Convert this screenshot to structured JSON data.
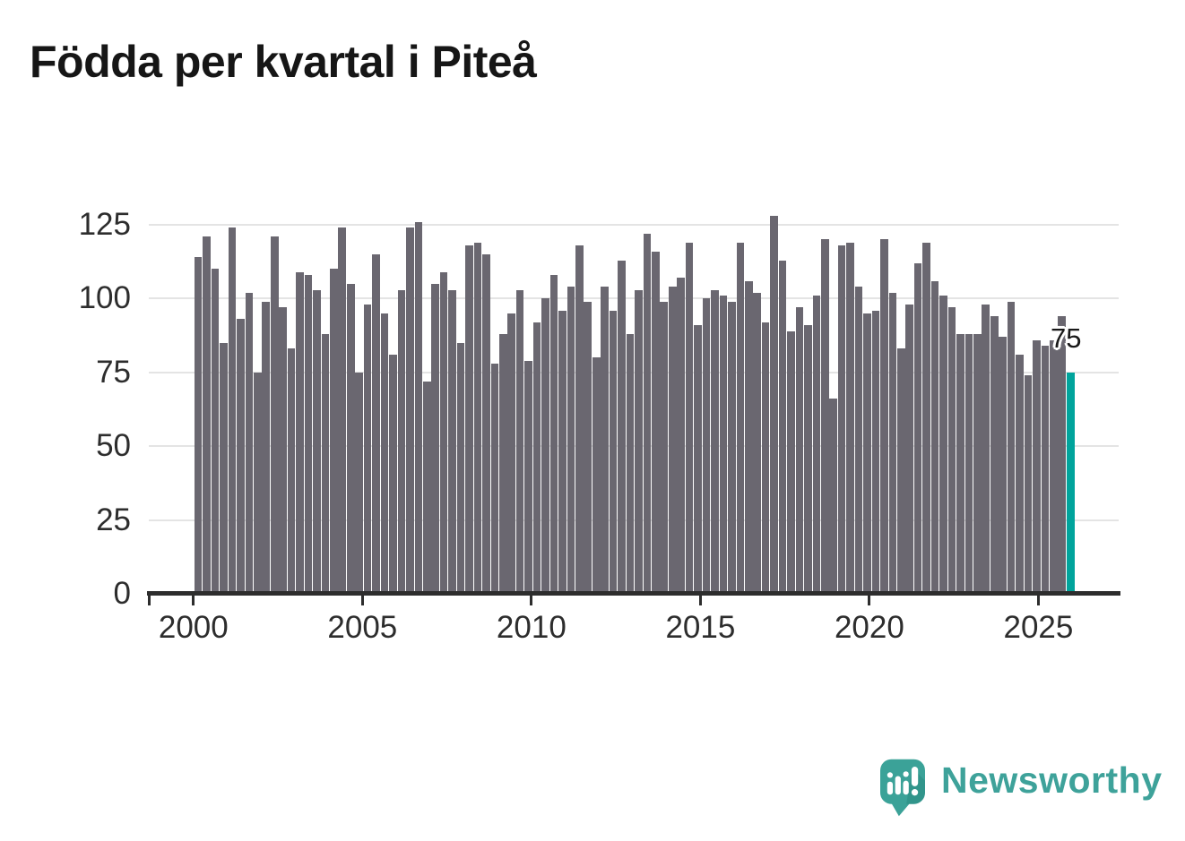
{
  "title": "Födda per kvartal i Piteå",
  "value_label": "75",
  "brand": {
    "name": "Newsworthy"
  },
  "colors": {
    "bar": "#6a6770",
    "highlight": "#00a49c",
    "gridline": "#e4e4e4",
    "axis": "#2d2d2d",
    "title_text": "#161616",
    "tick_text": "#2d2d2d",
    "annotation_text": "#191919",
    "brand_teal": "#3ea29a"
  },
  "chart_data": {
    "type": "bar",
    "title": "Födda per kvartal i Piteå",
    "xlabel": "",
    "ylabel": "",
    "ylim": [
      0,
      135
    ],
    "grid": "horizontal",
    "legend": "none",
    "y_ticks": [
      0,
      25,
      50,
      75,
      100,
      125
    ],
    "x_tick_labels": [
      "2000",
      "2005",
      "2010",
      "2015",
      "2020",
      "2025"
    ],
    "categories": [
      "2000 Q1",
      "2000 Q2",
      "2000 Q3",
      "2000 Q4",
      "2001 Q1",
      "2001 Q2",
      "2001 Q3",
      "2001 Q4",
      "2002 Q1",
      "2002 Q2",
      "2002 Q3",
      "2002 Q4",
      "2003 Q1",
      "2003 Q2",
      "2003 Q3",
      "2003 Q4",
      "2004 Q1",
      "2004 Q2",
      "2004 Q3",
      "2004 Q4",
      "2005 Q1",
      "2005 Q2",
      "2005 Q3",
      "2005 Q4",
      "2006 Q1",
      "2006 Q2",
      "2006 Q3",
      "2006 Q4",
      "2007 Q1",
      "2007 Q2",
      "2007 Q3",
      "2007 Q4",
      "2008 Q1",
      "2008 Q2",
      "2008 Q3",
      "2008 Q4",
      "2009 Q1",
      "2009 Q2",
      "2009 Q3",
      "2009 Q4",
      "2010 Q1",
      "2010 Q2",
      "2010 Q3",
      "2010 Q4",
      "2011 Q1",
      "2011 Q2",
      "2011 Q3",
      "2011 Q4",
      "2012 Q1",
      "2012 Q2",
      "2012 Q3",
      "2012 Q4",
      "2013 Q1",
      "2013 Q2",
      "2013 Q3",
      "2013 Q4",
      "2014 Q1",
      "2014 Q2",
      "2014 Q3",
      "2014 Q4",
      "2015 Q1",
      "2015 Q2",
      "2015 Q3",
      "2015 Q4",
      "2016 Q1",
      "2016 Q2",
      "2016 Q3",
      "2016 Q4",
      "2017 Q1",
      "2017 Q2",
      "2017 Q3",
      "2017 Q4",
      "2018 Q1",
      "2018 Q2",
      "2018 Q3",
      "2018 Q4",
      "2019 Q1",
      "2019 Q2",
      "2019 Q3",
      "2019 Q4",
      "2020 Q1",
      "2020 Q2",
      "2020 Q3",
      "2020 Q4",
      "2021 Q1",
      "2021 Q2",
      "2021 Q3",
      "2021 Q4",
      "2022 Q1",
      "2022 Q2",
      "2022 Q3",
      "2022 Q4",
      "2023 Q1",
      "2023 Q2",
      "2023 Q3",
      "2023 Q4",
      "2024 Q1",
      "2024 Q2",
      "2024 Q3",
      "2024 Q4",
      "2025 Q1",
      "2025 Q2",
      "2025 Q3",
      "2025 Q4"
    ],
    "values": [
      114,
      121,
      110,
      85,
      124,
      93,
      102,
      75,
      99,
      121,
      97,
      83,
      109,
      108,
      103,
      88,
      110,
      124,
      105,
      75,
      98,
      115,
      95,
      81,
      103,
      124,
      126,
      72,
      105,
      109,
      103,
      85,
      118,
      119,
      115,
      78,
      88,
      95,
      103,
      79,
      92,
      100,
      108,
      96,
      104,
      118,
      99,
      80,
      104,
      96,
      113,
      88,
      103,
      122,
      116,
      99,
      104,
      107,
      119,
      91,
      100,
      103,
      101,
      99,
      119,
      106,
      102,
      92,
      128,
      113,
      89,
      97,
      91,
      101,
      120,
      66,
      118,
      119,
      104,
      95,
      96,
      120,
      102,
      83,
      98,
      112,
      119,
      106,
      101,
      97,
      88,
      88,
      88,
      98,
      94,
      87,
      99,
      81,
      74,
      86,
      84,
      86,
      94,
      75
    ],
    "highlight": {
      "index": 103,
      "category": "2025 Q4",
      "value": 75,
      "label": "75",
      "color": "#00a49c"
    }
  }
}
